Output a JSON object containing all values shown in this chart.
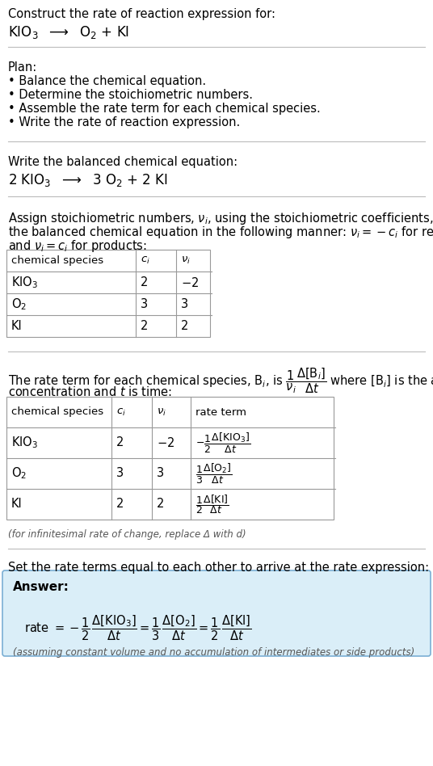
{
  "bg_color": "#ffffff",
  "text_color": "#000000",
  "table_border_color": "#999999",
  "answer_box_facecolor": "#daeef8",
  "answer_box_edgecolor": "#7bafd4",
  "line_color": "#bbbbbb",
  "title_text": "Construct the rate of reaction expression for:",
  "plan_header": "Plan:",
  "plan_items": [
    "• Balance the chemical equation.",
    "• Determine the stoichiometric numbers.",
    "• Assemble the rate term for each chemical species.",
    "• Write the rate of reaction expression."
  ],
  "balanced_header": "Write the balanced chemical equation:",
  "stoich_para_line1": "Assign stoichiometric numbers, $\\nu_i$, using the stoichiometric coefficients, $c_i$, from",
  "stoich_para_line2": "the balanced chemical equation in the following manner: $\\nu_i = -c_i$ for reactants",
  "stoich_para_line3": "and $\\nu_i = c_i$ for products:",
  "rate_para_line1": "The rate term for each chemical species, B$_i$, is $\\dfrac{1}{\\nu_i}\\dfrac{\\Delta[\\mathrm{B}_i]}{\\Delta t}$ where [B$_i$] is the amount",
  "rate_para_line2": "concentration and $t$ is time:",
  "infinitesimal_note": "(for infinitesimal rate of change, replace Δ with d)",
  "set_equal_text": "Set the rate terms equal to each other to arrive at the rate expression:",
  "answer_label": "Answer:",
  "answer_note": "(assuming constant volume and no accumulation of intermediates or side products)"
}
